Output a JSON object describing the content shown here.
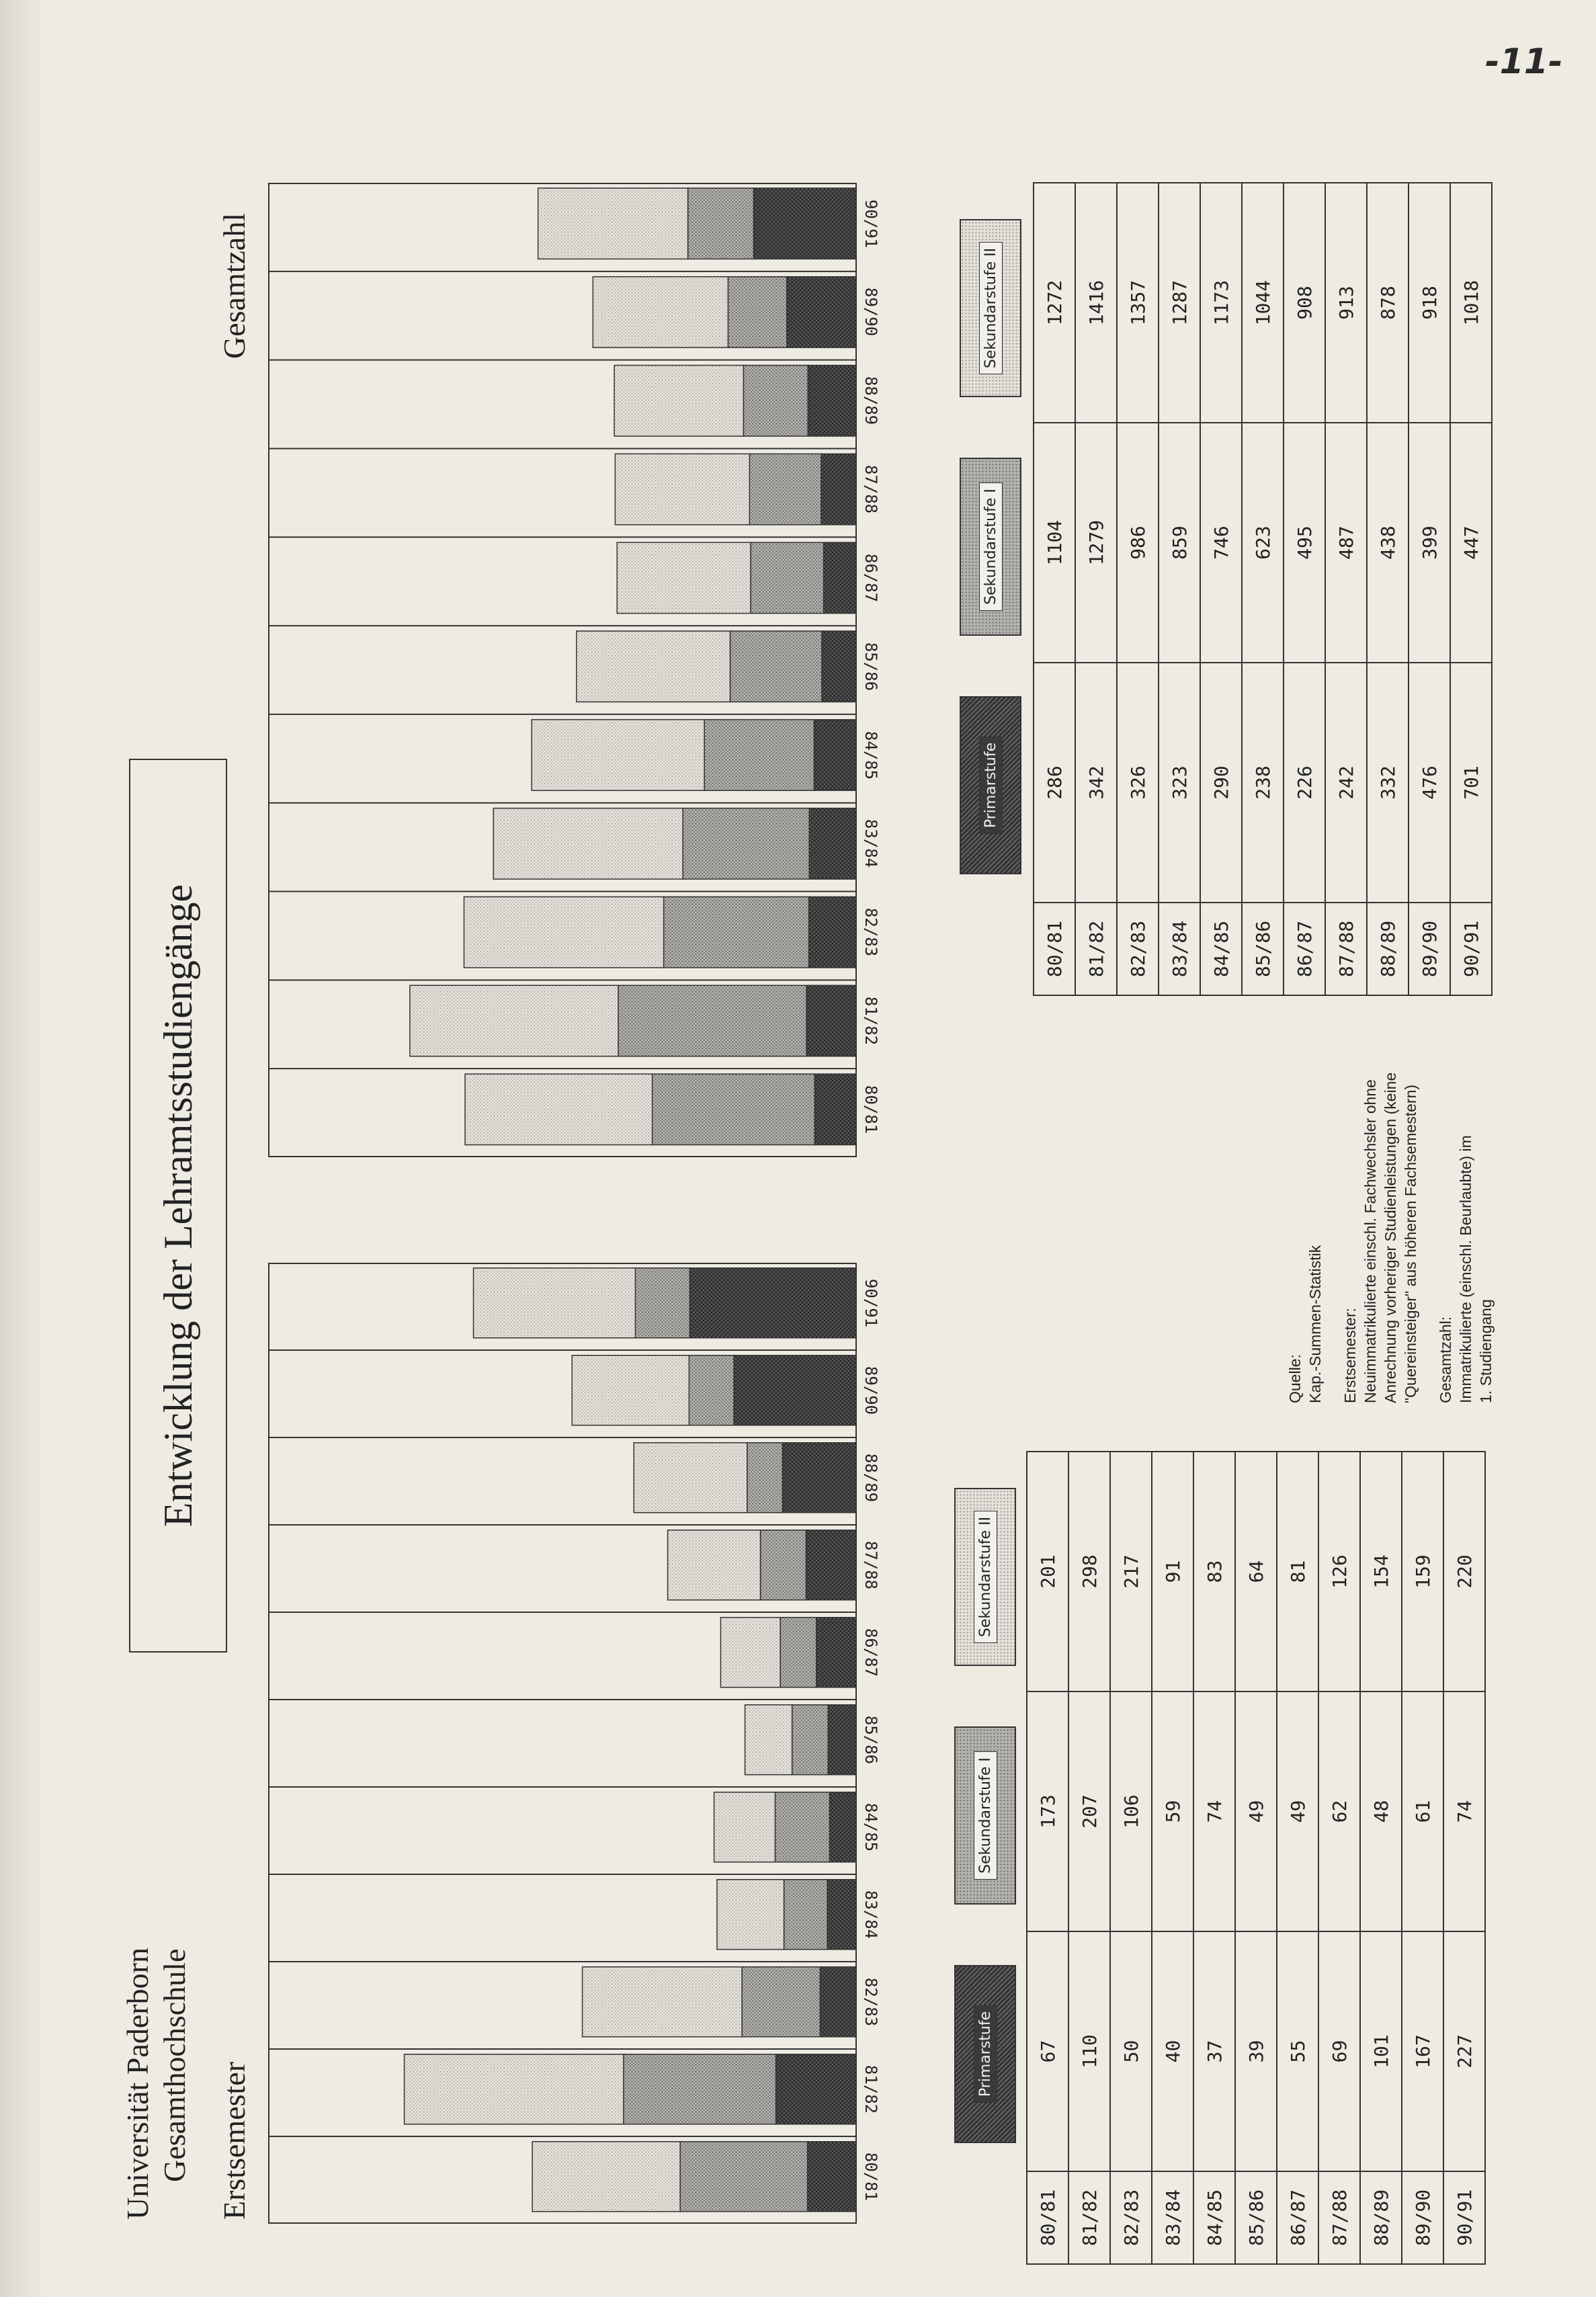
{
  "page_number": "-11-",
  "header": {
    "university": "Universität Paderborn",
    "school": "Gesamthochschule"
  },
  "title": "Entwicklung der Lehramtsstudiengänge",
  "legend": {
    "primar": "Primarstufe",
    "sek1": "Sekundarstufe I",
    "sek2": "Sekundarstufe II"
  },
  "colors": {
    "primar": "#5a5a5a",
    "sek1": "#a8a6a0",
    "sek2": "#dddad2",
    "ink": "#222222",
    "paper": "#eeebe3"
  },
  "notes": {
    "source_label": "Quelle:",
    "source": "Kap.-Summen-Statistik",
    "erst_label": "Erstsemester:",
    "erst_lines": [
      "Neuimmatrikulierte einschl. Fachwechsler ohne",
      "Anrechnung vorheriger Studienleistungen (keine",
      "\"Quereinsteiger\" aus höheren Fachsemestern)"
    ],
    "gesamt_label": "Gesamtzahl:",
    "gesamt_lines": [
      "Immatrikulierte (einschl. Beurlaubte) im",
      "1. Studiengang"
    ]
  },
  "chart_data": [
    {
      "type": "bar",
      "stacked": true,
      "title": "Erstsemester",
      "categories": [
        "80/81",
        "81/82",
        "82/83",
        "83/84",
        "84/85",
        "85/86",
        "86/87",
        "87/88",
        "88/89",
        "89/90",
        "90/91"
      ],
      "series": [
        {
          "name": "Primarstufe",
          "values": [
            67,
            110,
            50,
            40,
            37,
            39,
            55,
            69,
            101,
            167,
            227
          ]
        },
        {
          "name": "Sekundarstufe I",
          "values": [
            173,
            207,
            106,
            59,
            74,
            49,
            49,
            62,
            48,
            61,
            74
          ]
        },
        {
          "name": "Sekundarstufe II",
          "values": [
            201,
            298,
            217,
            91,
            83,
            64,
            81,
            126,
            154,
            159,
            220
          ]
        }
      ],
      "ylim": [
        0,
        800
      ],
      "grid": false
    },
    {
      "type": "bar",
      "stacked": true,
      "title": "Gesamtzahl",
      "categories": [
        "80/81",
        "81/82",
        "82/83",
        "83/84",
        "84/85",
        "85/86",
        "86/87",
        "87/88",
        "88/89",
        "89/90",
        "90/91"
      ],
      "series": [
        {
          "name": "Primarstufe",
          "values": [
            286,
            342,
            326,
            323,
            290,
            238,
            226,
            242,
            332,
            476,
            701
          ]
        },
        {
          "name": "Sekundarstufe I",
          "values": [
            1104,
            1279,
            986,
            859,
            746,
            623,
            495,
            487,
            438,
            399,
            447
          ]
        },
        {
          "name": "Sekundarstufe II",
          "values": [
            1272,
            1416,
            1357,
            1287,
            1173,
            1044,
            908,
            913,
            878,
            918,
            1018
          ]
        }
      ],
      "ylim": [
        0,
        4000
      ],
      "grid": false
    }
  ]
}
